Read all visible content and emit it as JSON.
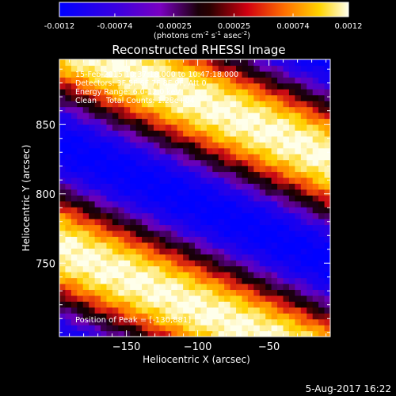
{
  "chart_data": {
    "type": "heatmap",
    "title": "Reconstructed RHESSI Image",
    "xlabel": "Heliocentric X (arcsec)",
    "ylabel": "Heliocentric Y (arcsec)",
    "xlim": [
      -197,
      -7
    ],
    "ylim": [
      697,
      897
    ],
    "x_ticks": [
      -150,
      -100,
      -50
    ],
    "y_ticks": [
      750,
      800,
      850
    ],
    "colorbar": {
      "range": [
        -0.0012,
        0.0012
      ],
      "ticks": [
        "-0.0012",
        "-0.00074",
        "-0.00025",
        "0.00025",
        "0.00074",
        "0.0012"
      ],
      "units_parts": [
        "(photons cm",
        "-2",
        " s",
        "-1",
        " asec",
        "-2",
        ")"
      ],
      "colors": [
        "#0000ff",
        "#5a00d8",
        "#a000b0",
        "#2a000a",
        "#c80014",
        "#ff6a00",
        "#ffd200",
        "#ffffe8"
      ]
    },
    "annotations": [
      "15-Feb-2015 10:37:18.000 to 10:47:18.000",
      "Detectors: 3F 5F 6F 7F 8F 9F, Att 0",
      "Energy Range: 6.0-12.0 keV",
      "Clean    Total Counts: 1.28e+04"
    ],
    "peak_text": "Position of Peak = [-130,881]",
    "band_pattern": {
      "description_units": "stripes descending toward +X",
      "slope_y_per_x": -0.45,
      "period_y": 150,
      "peak_y_at_x_minus_130": 881,
      "amplitude": 0.0012
    }
  },
  "footer": {
    "date": "5-Aug-2017 16:22"
  }
}
